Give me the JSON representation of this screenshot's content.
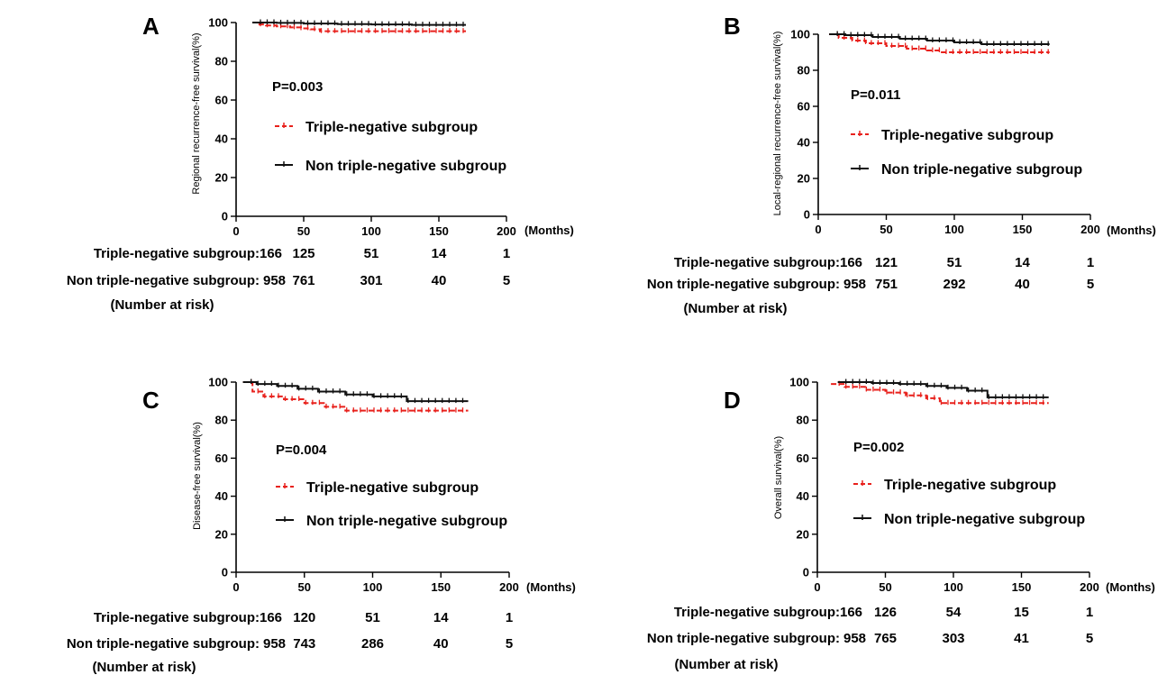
{
  "chart_data": [
    {
      "type": "line",
      "panel_label": "A",
      "ylabel": "Regional recurrence-free survival(%)",
      "xlabel": "(Months)",
      "xlim": [
        0,
        200
      ],
      "ylim": [
        0,
        100
      ],
      "xticks": [
        "0",
        "50",
        "100",
        "150",
        "200"
      ],
      "yticks": [
        "0",
        "20",
        "40",
        "60",
        "80",
        "100"
      ],
      "annotation": "P=0.003",
      "legend_placement": "center-left",
      "colors": {
        "series1": "#e8211c",
        "series2": "#111111"
      },
      "series": [
        {
          "name": "Triple-negative subgroup",
          "style": "dashed",
          "x": [
            12,
            16,
            22,
            30,
            40,
            48,
            55,
            62,
            170
          ],
          "y": [
            100,
            99,
            98.5,
            98,
            97.5,
            97,
            96.5,
            95.5,
            95.5
          ]
        },
        {
          "name": "Non triple-negative subgroup",
          "style": "solid",
          "x": [
            12,
            30,
            50,
            75,
            100,
            130,
            170
          ],
          "y": [
            100,
            99.8,
            99.5,
            99.2,
            99,
            98.8,
            98.8
          ]
        }
      ],
      "risk_table": {
        "rows": [
          {
            "label": "Triple-negative subgroup:",
            "values": [
              "166",
              "125",
              "51",
              "14",
              "1"
            ]
          },
          {
            "label": "Non triple-negative subgroup:",
            "values": [
              "958",
              "761",
              "301",
              "40",
              "5"
            ]
          }
        ],
        "footer": "(Number at risk)"
      }
    },
    {
      "type": "line",
      "panel_label": "B",
      "ylabel": "Local-regional recurrence-free survival(%)",
      "xlabel": "(Months)",
      "xlim": [
        0,
        200
      ],
      "ylim": [
        0,
        100
      ],
      "xticks": [
        "0",
        "50",
        "100",
        "150",
        "200"
      ],
      "yticks": [
        "0",
        "20",
        "40",
        "60",
        "80",
        "100"
      ],
      "annotation": "P=0.011",
      "legend_placement": "center-left",
      "colors": {
        "series1": "#e8211c",
        "series2": "#111111"
      },
      "series": [
        {
          "name": "Triple-negative subgroup",
          "style": "dashed",
          "x": [
            8,
            15,
            25,
            35,
            50,
            65,
            80,
            90,
            170
          ],
          "y": [
            100,
            98,
            96.5,
            95,
            93.5,
            92,
            91,
            90,
            90
          ]
        },
        {
          "name": "Non triple-negative subgroup",
          "style": "solid",
          "x": [
            8,
            20,
            40,
            60,
            80,
            100,
            120,
            170
          ],
          "y": [
            100,
            99.5,
            98.5,
            97.5,
            96.5,
            95.5,
            94.5,
            94.5
          ]
        }
      ],
      "risk_table": {
        "rows": [
          {
            "label": "Triple-negative subgroup:",
            "values": [
              "166",
              "121",
              "51",
              "14",
              "1"
            ]
          },
          {
            "label": "Non triple-negative subgroup:",
            "values": [
              "958",
              "751",
              "292",
              "40",
              "5"
            ]
          }
        ],
        "footer": "(Number at risk)"
      }
    },
    {
      "type": "line",
      "panel_label": "C",
      "ylabel": "Disease-free survival(%)",
      "xlabel": "(Months)",
      "xlim": [
        0,
        200
      ],
      "ylim": [
        0,
        100
      ],
      "xticks": [
        "0",
        "50",
        "100",
        "150",
        "200"
      ],
      "yticks": [
        "0",
        "20",
        "40",
        "60",
        "80",
        "100"
      ],
      "annotation": "P=0.004",
      "legend_placement": "center-left",
      "colors": {
        "series1": "#e8211c",
        "series2": "#111111"
      },
      "series": [
        {
          "name": "Triple-negative subgroup",
          "style": "dashed",
          "x": [
            5,
            12,
            20,
            35,
            50,
            65,
            80,
            170
          ],
          "y": [
            100,
            95,
            92.5,
            91,
            89,
            87,
            85,
            85
          ]
        },
        {
          "name": "Non triple-negative subgroup",
          "style": "solid",
          "x": [
            5,
            15,
            30,
            45,
            60,
            80,
            100,
            125,
            170
          ],
          "y": [
            100,
            99,
            98,
            96.5,
            95,
            93.5,
            92.5,
            90,
            90
          ]
        }
      ],
      "risk_table": {
        "rows": [
          {
            "label": "Triple-negative subgroup:",
            "values": [
              "166",
              "120",
              "51",
              "14",
              "1"
            ]
          },
          {
            "label": "Non triple-negative subgroup:",
            "values": [
              "958",
              "743",
              "286",
              "40",
              "5"
            ]
          }
        ],
        "footer": "(Number at risk)"
      }
    },
    {
      "type": "line",
      "panel_label": "D",
      "ylabel": "Overall survival(%)",
      "xlabel": "(Months)",
      "xlim": [
        0,
        200
      ],
      "ylim": [
        0,
        100
      ],
      "xticks": [
        "0",
        "50",
        "100",
        "150",
        "200"
      ],
      "yticks": [
        "0",
        "20",
        "40",
        "60",
        "80",
        "100"
      ],
      "annotation": "P=0.002",
      "legend_placement": "center-left",
      "colors": {
        "series1": "#e8211c",
        "series2": "#111111"
      },
      "series": [
        {
          "name": "Triple-negative subgroup",
          "style": "dashed",
          "x": [
            10,
            20,
            35,
            50,
            65,
            80,
            90,
            170
          ],
          "y": [
            99,
            97.5,
            96,
            94.5,
            93,
            91.5,
            89,
            89
          ]
        },
        {
          "name": "Non triple-negative subgroup",
          "style": "solid",
          "x": [
            15,
            40,
            60,
            80,
            95,
            110,
            125,
            170
          ],
          "y": [
            100,
            99.5,
            99,
            98,
            97,
            95.5,
            92,
            92
          ]
        }
      ],
      "risk_table": {
        "rows": [
          {
            "label": "Triple-negative subgroup:",
            "values": [
              "166",
              "126",
              "54",
              "15",
              "1"
            ]
          },
          {
            "label": "Non triple-negative subgroup:",
            "values": [
              "958",
              "765",
              "303",
              "41",
              "5"
            ]
          }
        ],
        "footer": "(Number at risk)"
      }
    }
  ]
}
